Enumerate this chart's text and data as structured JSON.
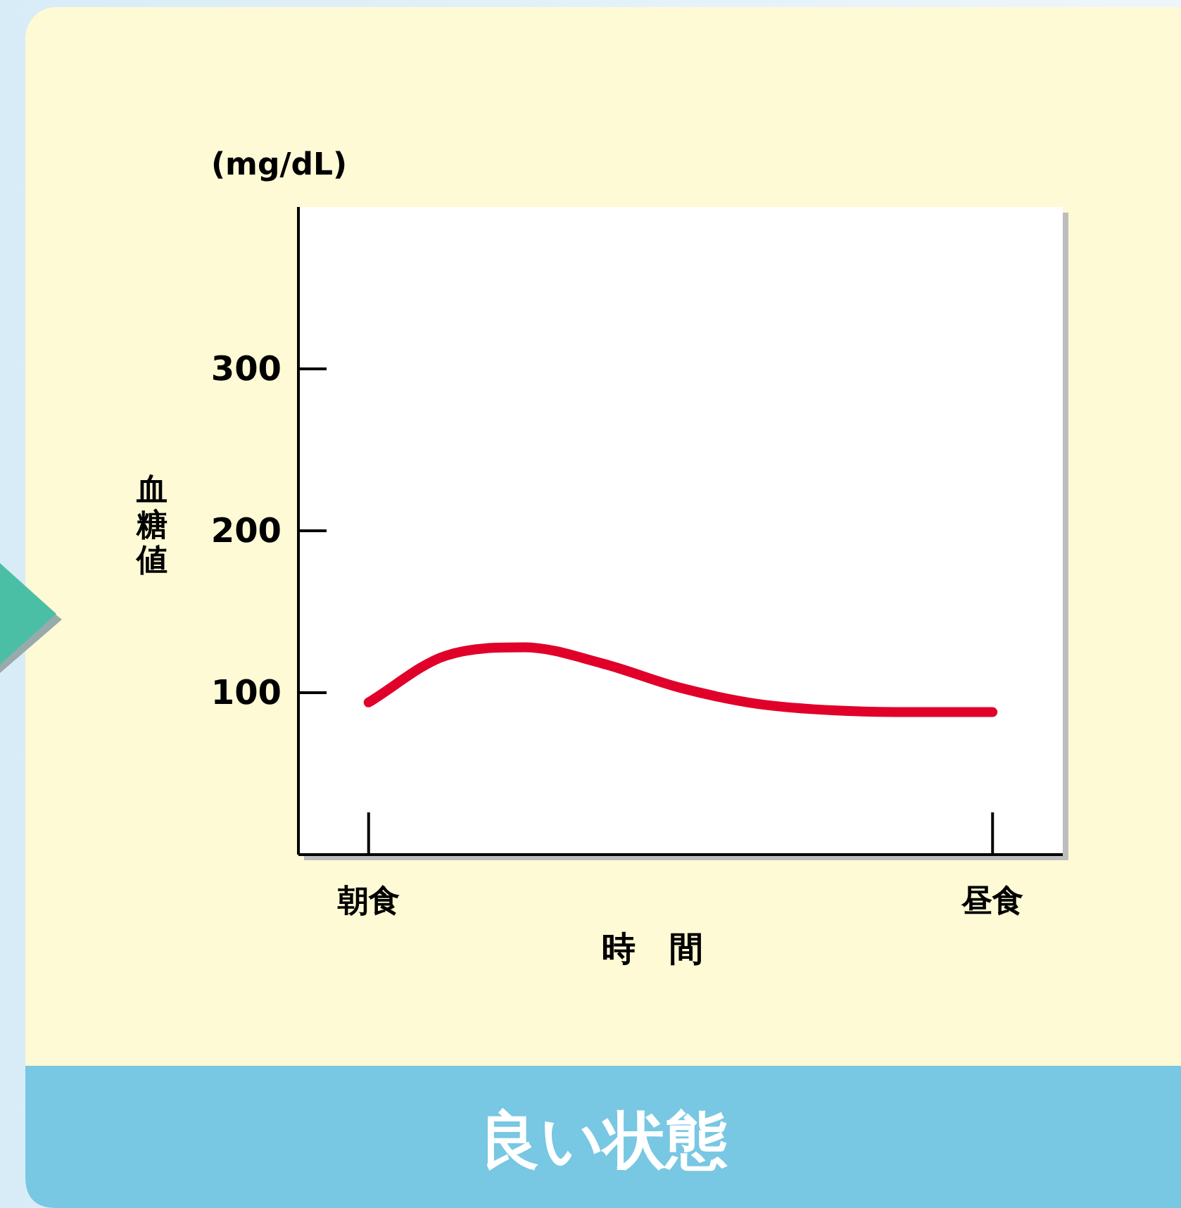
{
  "chart_data": {
    "type": "line",
    "title": "良い状態",
    "xlabel": "時　間",
    "ylabel": "血糖値",
    "annotations": [
      "(mg/dL)"
    ],
    "categories": [
      "朝食",
      null,
      null,
      null,
      null,
      null,
      null,
      null,
      "昼食"
    ],
    "series": [
      {
        "color": "#e0002a",
        "values": [
          94,
          123,
          128,
          118,
          103,
          93,
          89,
          88,
          88
        ]
      }
    ],
    "ylim": [
      0,
      400
    ],
    "yticks": [
      100,
      200,
      300
    ]
  }
}
